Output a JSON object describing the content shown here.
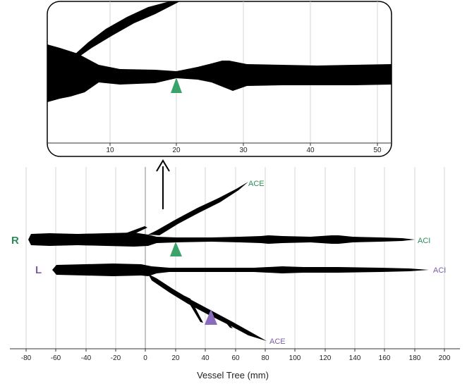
{
  "colors": {
    "green": "#2e8b57",
    "purple": "#7e5ca8",
    "marker_green": "#3aa36a",
    "marker_purple": "#8a6bbd"
  },
  "inset": {
    "ticks": [
      "10",
      "20",
      "30",
      "40",
      "50"
    ]
  },
  "main": {
    "ticks": [
      "-80",
      "-60",
      "-40",
      "-20",
      "0",
      "20",
      "40",
      "60",
      "80",
      "100",
      "120",
      "140",
      "160",
      "180",
      "200"
    ],
    "xlabel": "Vessel Tree (mm)",
    "right_side": {
      "letter": "R",
      "label_ace": "ACE",
      "label_aci": "ACI"
    },
    "left_side": {
      "letter": "L",
      "label_ace": "ACE",
      "label_aci": "ACI"
    }
  }
}
